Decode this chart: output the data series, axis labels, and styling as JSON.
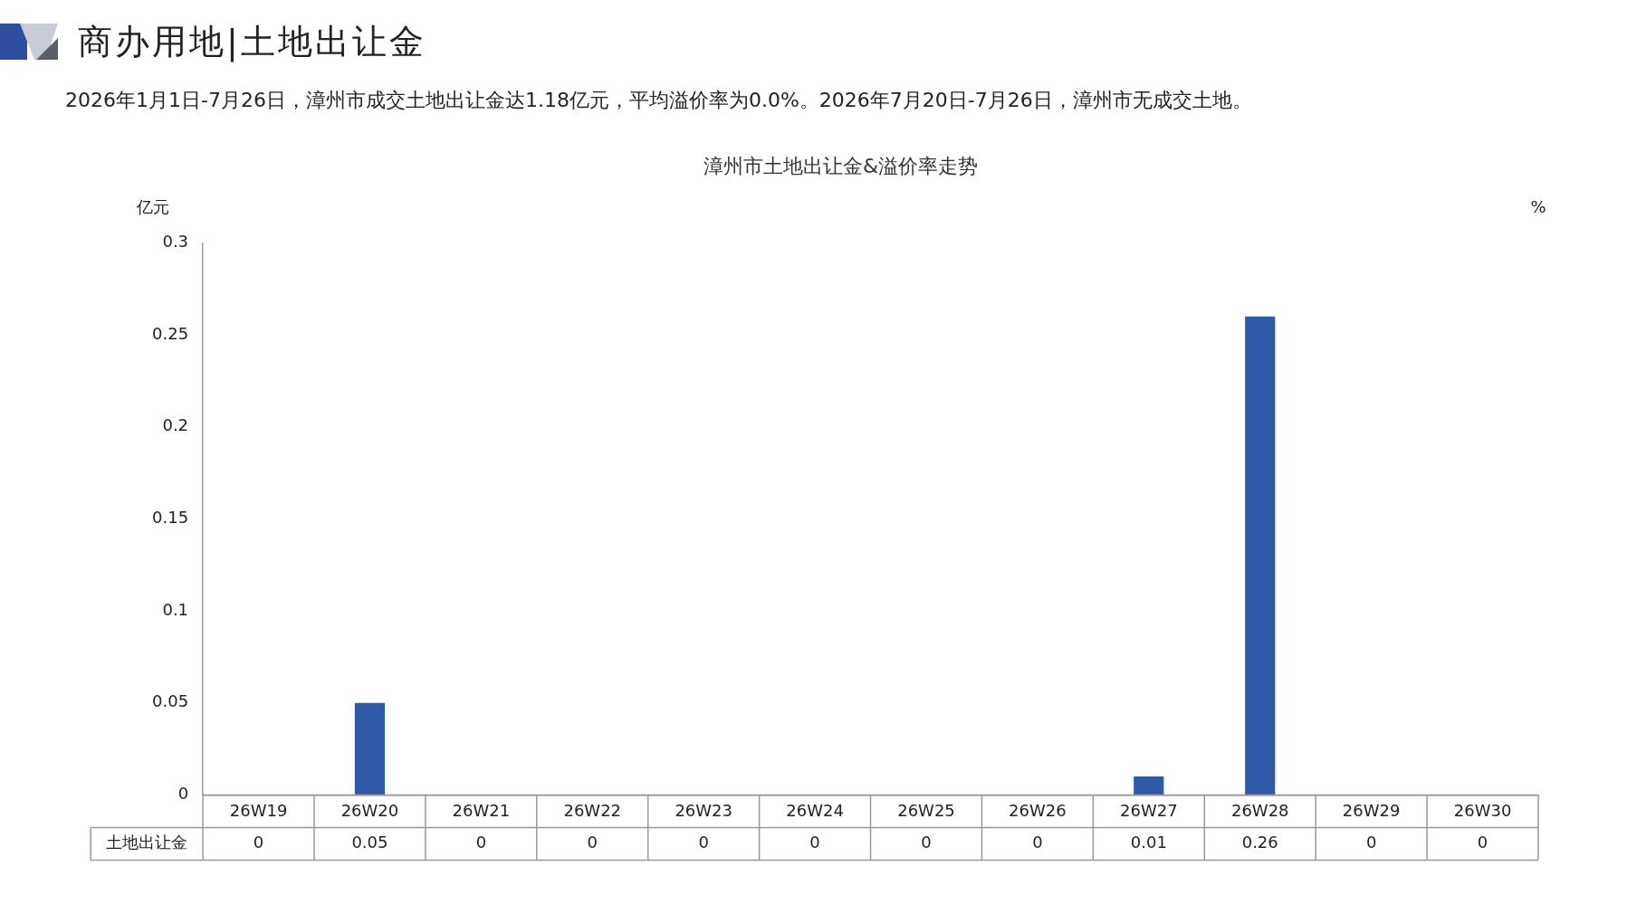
{
  "chart_data": {
    "type": "bar",
    "title": "漳州市土地出让金&溢价率走势",
    "ylabel": "亿元",
    "y2label": "%",
    "annotations": [
      "商办用地|土地出让金",
      "2026年1月1日-7月26日，漳州市成交土地出让金达1.18亿元，平均溢价率为0.0%。2026年7月20日-7月26日，漳州市无成交土地。"
    ],
    "categories": [
      "26W19",
      "26W20",
      "26W21",
      "26W22",
      "26W23",
      "26W24",
      "26W25",
      "26W26",
      "26W27",
      "26W28",
      "26W29",
      "26W30"
    ],
    "series": [
      {
        "name": "土地出让金",
        "color": "#2e5aa8",
        "values": [
          0,
          0.05,
          0,
          0,
          0,
          0,
          0,
          0,
          0.01,
          0.26,
          0,
          0
        ]
      }
    ],
    "ylim": [
      0,
      0.3
    ],
    "yticks": [
      0,
      0.05,
      0.1,
      0.15,
      0.2,
      0.25,
      0.3
    ],
    "grid": false,
    "legend": false,
    "data_labels": true
  }
}
